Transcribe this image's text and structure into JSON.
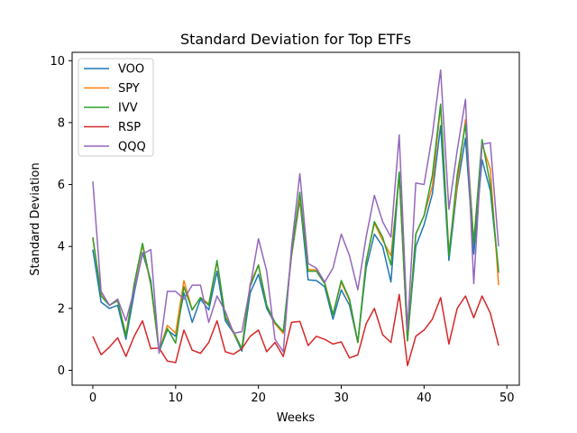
{
  "chart_data": {
    "type": "line",
    "title": "Standard Deviation for Top ETFs",
    "xlabel": "Weeks",
    "ylabel": "Standard Deviation",
    "xlim": [
      -2.5,
      51.5
    ],
    "ylim": [
      -0.48,
      10.27
    ],
    "xticks": [
      0,
      10,
      20,
      30,
      40,
      50
    ],
    "yticks": [
      0,
      2,
      4,
      6,
      8,
      10
    ],
    "grid": false,
    "legend_position": "top-left",
    "x": [
      0,
      1,
      2,
      3,
      4,
      5,
      6,
      7,
      8,
      9,
      10,
      11,
      12,
      13,
      14,
      15,
      16,
      17,
      18,
      19,
      20,
      21,
      22,
      23,
      24,
      25,
      26,
      27,
      28,
      29,
      30,
      31,
      32,
      33,
      34,
      35,
      36,
      37,
      38,
      39,
      40,
      41,
      42,
      43,
      44,
      45,
      46,
      47,
      48,
      49
    ],
    "series": [
      {
        "name": "VOO",
        "color": "#1f77b4",
        "values": [
          3.9,
          2.2,
          2.0,
          2.1,
          1.0,
          2.5,
          3.8,
          2.9,
          0.6,
          1.3,
          1.1,
          2.5,
          1.55,
          2.3,
          1.95,
          3.2,
          1.6,
          1.2,
          0.62,
          2.5,
          3.1,
          2.0,
          1.5,
          1.2,
          3.7,
          5.5,
          2.92,
          2.9,
          2.7,
          1.65,
          2.6,
          2.1,
          0.9,
          3.3,
          4.4,
          4.0,
          2.85,
          6.4,
          1.0,
          4.0,
          4.7,
          5.7,
          7.9,
          3.55,
          5.9,
          7.5,
          3.75,
          6.8,
          5.8,
          3.15
        ]
      },
      {
        "name": "SPY",
        "color": "#ff7f0e",
        "values": [
          4.25,
          2.5,
          2.1,
          2.25,
          1.15,
          2.75,
          4.05,
          2.75,
          0.62,
          1.45,
          1.2,
          2.9,
          1.95,
          2.35,
          2.15,
          3.5,
          1.75,
          1.2,
          0.7,
          2.8,
          3.4,
          2.1,
          1.5,
          1.2,
          3.75,
          5.6,
          3.25,
          3.25,
          2.85,
          1.8,
          2.85,
          2.25,
          0.9,
          3.5,
          4.75,
          4.2,
          3.7,
          6.3,
          0.95,
          4.4,
          5.0,
          5.95,
          8.55,
          3.8,
          6.0,
          8.1,
          4.15,
          7.3,
          6.5,
          2.75
        ]
      },
      {
        "name": "IVV",
        "color": "#2ca02c",
        "values": [
          4.3,
          2.4,
          2.1,
          2.25,
          1.1,
          2.8,
          4.1,
          2.8,
          0.62,
          1.35,
          0.88,
          2.7,
          1.95,
          2.35,
          2.1,
          3.55,
          1.7,
          1.25,
          0.7,
          2.7,
          3.4,
          2.1,
          1.55,
          1.25,
          3.8,
          5.75,
          3.2,
          3.2,
          2.8,
          1.8,
          2.9,
          2.3,
          0.9,
          3.5,
          4.8,
          4.3,
          3.4,
          6.4,
          0.95,
          4.4,
          5.0,
          6.3,
          8.6,
          3.7,
          6.3,
          7.95,
          4.1,
          7.45,
          6.0,
          3.2
        ]
      },
      {
        "name": "RSP",
        "color": "#d62728",
        "values": [
          1.1,
          0.5,
          0.75,
          1.05,
          0.45,
          1.1,
          1.6,
          0.7,
          0.72,
          0.3,
          0.25,
          1.3,
          0.65,
          0.55,
          0.9,
          1.6,
          0.6,
          0.52,
          0.7,
          1.1,
          1.3,
          0.6,
          0.9,
          0.45,
          1.55,
          1.58,
          0.8,
          1.1,
          1.0,
          0.85,
          0.92,
          0.4,
          0.5,
          1.5,
          2.0,
          1.15,
          0.9,
          2.45,
          0.15,
          1.1,
          1.3,
          1.65,
          2.35,
          0.85,
          2.0,
          2.4,
          1.7,
          2.4,
          1.85,
          0.8
        ]
      },
      {
        "name": "QQQ",
        "color": "#9467bd",
        "values": [
          6.1,
          2.55,
          2.1,
          2.3,
          1.6,
          2.6,
          3.75,
          3.9,
          0.55,
          2.55,
          2.55,
          2.3,
          2.75,
          2.75,
          1.55,
          2.4,
          1.9,
          1.2,
          1.25,
          2.7,
          4.25,
          3.2,
          1.0,
          0.6,
          4.0,
          6.35,
          3.45,
          3.3,
          2.85,
          3.3,
          4.4,
          3.7,
          2.6,
          4.3,
          5.65,
          4.8,
          4.3,
          7.6,
          1.3,
          6.05,
          6.0,
          7.6,
          9.7,
          5.2,
          7.1,
          8.75,
          2.8,
          7.3,
          7.35,
          4.0
        ]
      }
    ]
  }
}
